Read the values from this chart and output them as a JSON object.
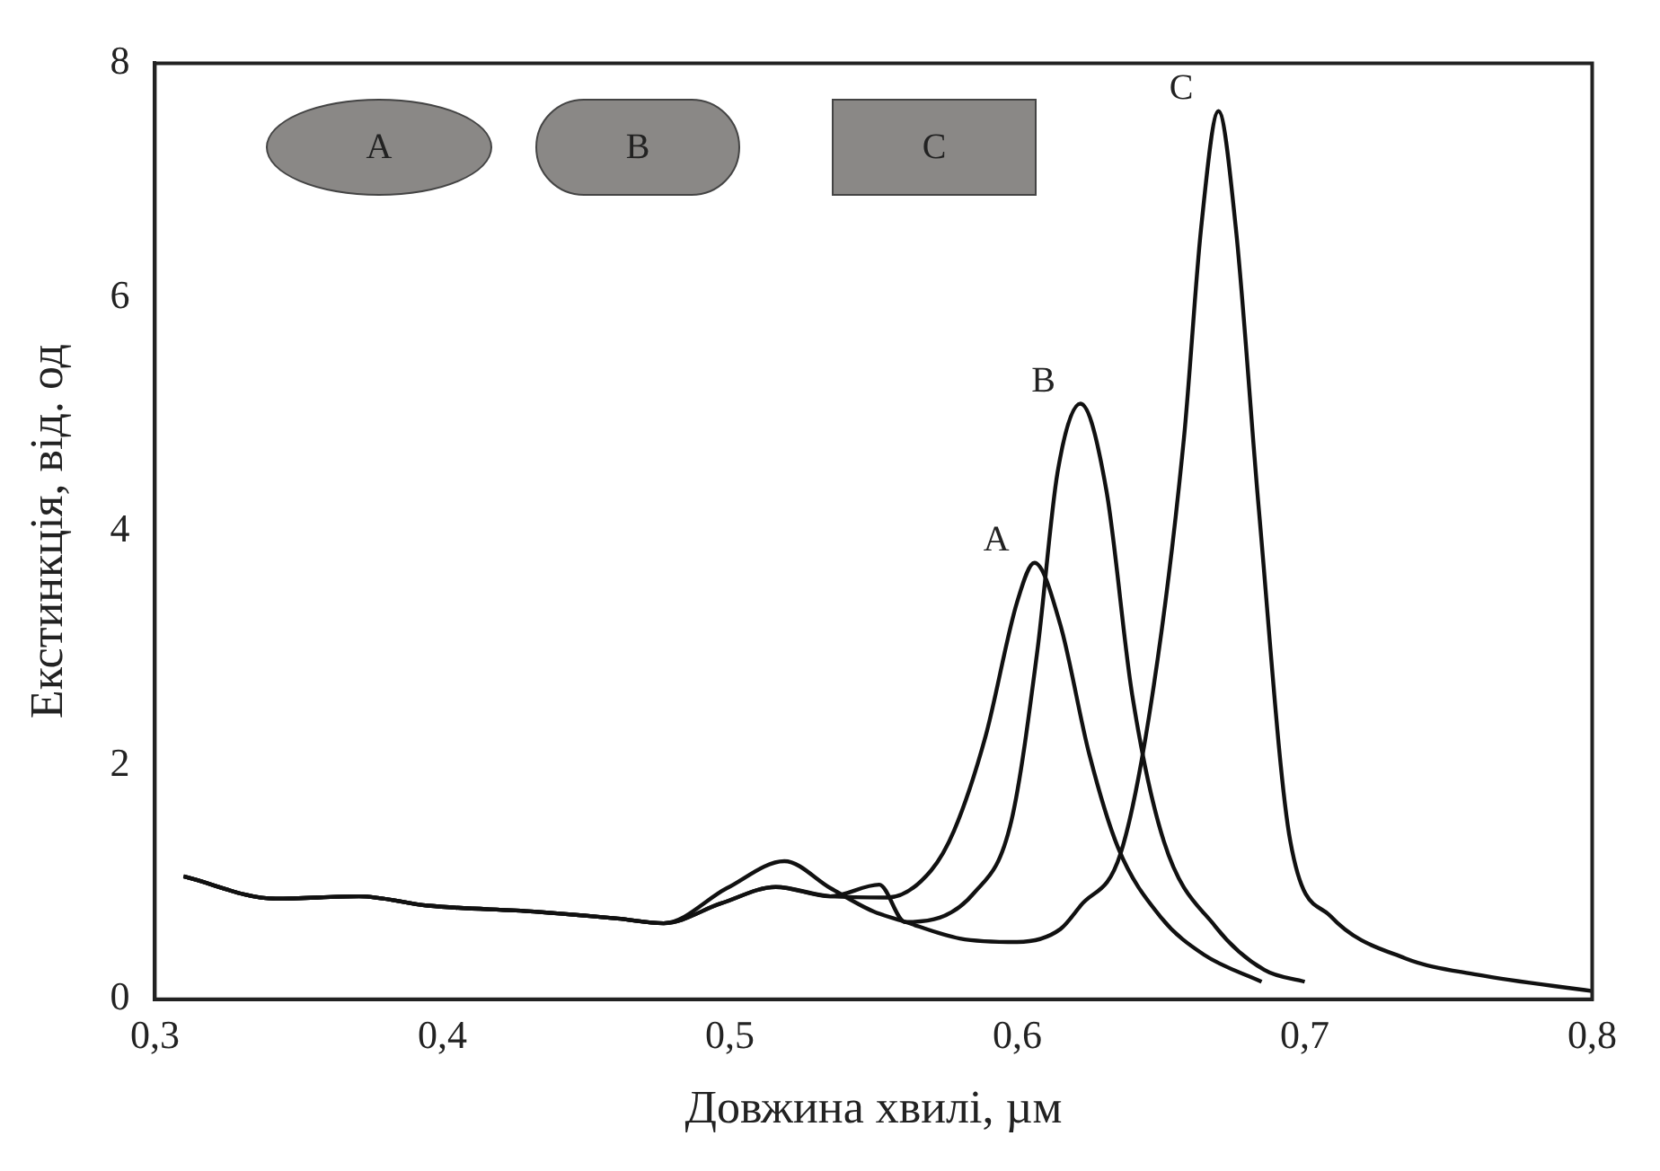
{
  "chart_data": {
    "type": "line",
    "xlabel": "Довжина хвилі, µм",
    "ylabel": "Екстинкція, від. од",
    "xlim": [
      0.3,
      0.8
    ],
    "ylim": [
      0,
      8
    ],
    "xticks": [
      {
        "value": 0.3,
        "label": "0,3"
      },
      {
        "value": 0.4,
        "label": "0,4"
      },
      {
        "value": 0.5,
        "label": "0,5"
      },
      {
        "value": 0.6,
        "label": "0,6"
      },
      {
        "value": 0.7,
        "label": "0,7"
      },
      {
        "value": 0.8,
        "label": "0,8"
      }
    ],
    "yticks": [
      0,
      2,
      4,
      6,
      8
    ],
    "grid": false,
    "legend": false,
    "marker": "none",
    "line_style": "solid",
    "annotations": [
      "A",
      "B",
      "C"
    ],
    "series": [
      {
        "name": "A",
        "color": "#111111",
        "x": [
          0.31,
          0.342,
          0.371,
          0.395,
          0.432,
          0.461,
          0.477,
          0.497,
          0.516,
          0.535,
          0.555,
          0.57,
          0.578,
          0.589,
          0.6,
          0.606,
          0.615,
          0.625,
          0.635,
          0.65,
          0.665,
          0.685
        ],
        "values": [
          1.05,
          0.86,
          0.88,
          0.8,
          0.75,
          0.69,
          0.65,
          0.82,
          0.96,
          0.88,
          0.87,
          1.1,
          1.44,
          2.25,
          3.4,
          3.73,
          3.2,
          2.1,
          1.3,
          0.7,
          0.38,
          0.15
        ]
      },
      {
        "name": "B",
        "color": "#111111",
        "x": [
          0.31,
          0.342,
          0.371,
          0.395,
          0.432,
          0.461,
          0.477,
          0.497,
          0.516,
          0.535,
          0.552,
          0.561,
          0.585,
          0.598,
          0.607,
          0.614,
          0.622,
          0.631,
          0.64,
          0.651,
          0.669,
          0.686,
          0.7
        ],
        "values": [
          1.05,
          0.86,
          0.88,
          0.8,
          0.75,
          0.69,
          0.65,
          0.82,
          0.96,
          0.88,
          0.98,
          0.66,
          0.91,
          1.53,
          2.98,
          4.5,
          5.09,
          4.35,
          2.6,
          1.35,
          0.62,
          0.25,
          0.15
        ]
      },
      {
        "name": "C",
        "color": "#111111",
        "x": [
          0.31,
          0.342,
          0.371,
          0.395,
          0.432,
          0.461,
          0.477,
          0.499,
          0.519,
          0.535,
          0.55,
          0.56,
          0.58,
          0.6,
          0.615,
          0.622,
          0.636,
          0.647,
          0.658,
          0.664,
          0.67,
          0.676,
          0.684,
          0.695,
          0.709,
          0.735,
          0.76,
          0.8
        ],
        "values": [
          1.05,
          0.86,
          0.88,
          0.8,
          0.75,
          0.69,
          0.65,
          0.95,
          1.18,
          0.95,
          0.75,
          0.67,
          0.52,
          0.49,
          0.6,
          0.8,
          1.25,
          2.6,
          4.8,
          6.6,
          7.59,
          6.6,
          4.2,
          1.35,
          0.71,
          0.35,
          0.21,
          0.07
        ]
      }
    ]
  }
}
